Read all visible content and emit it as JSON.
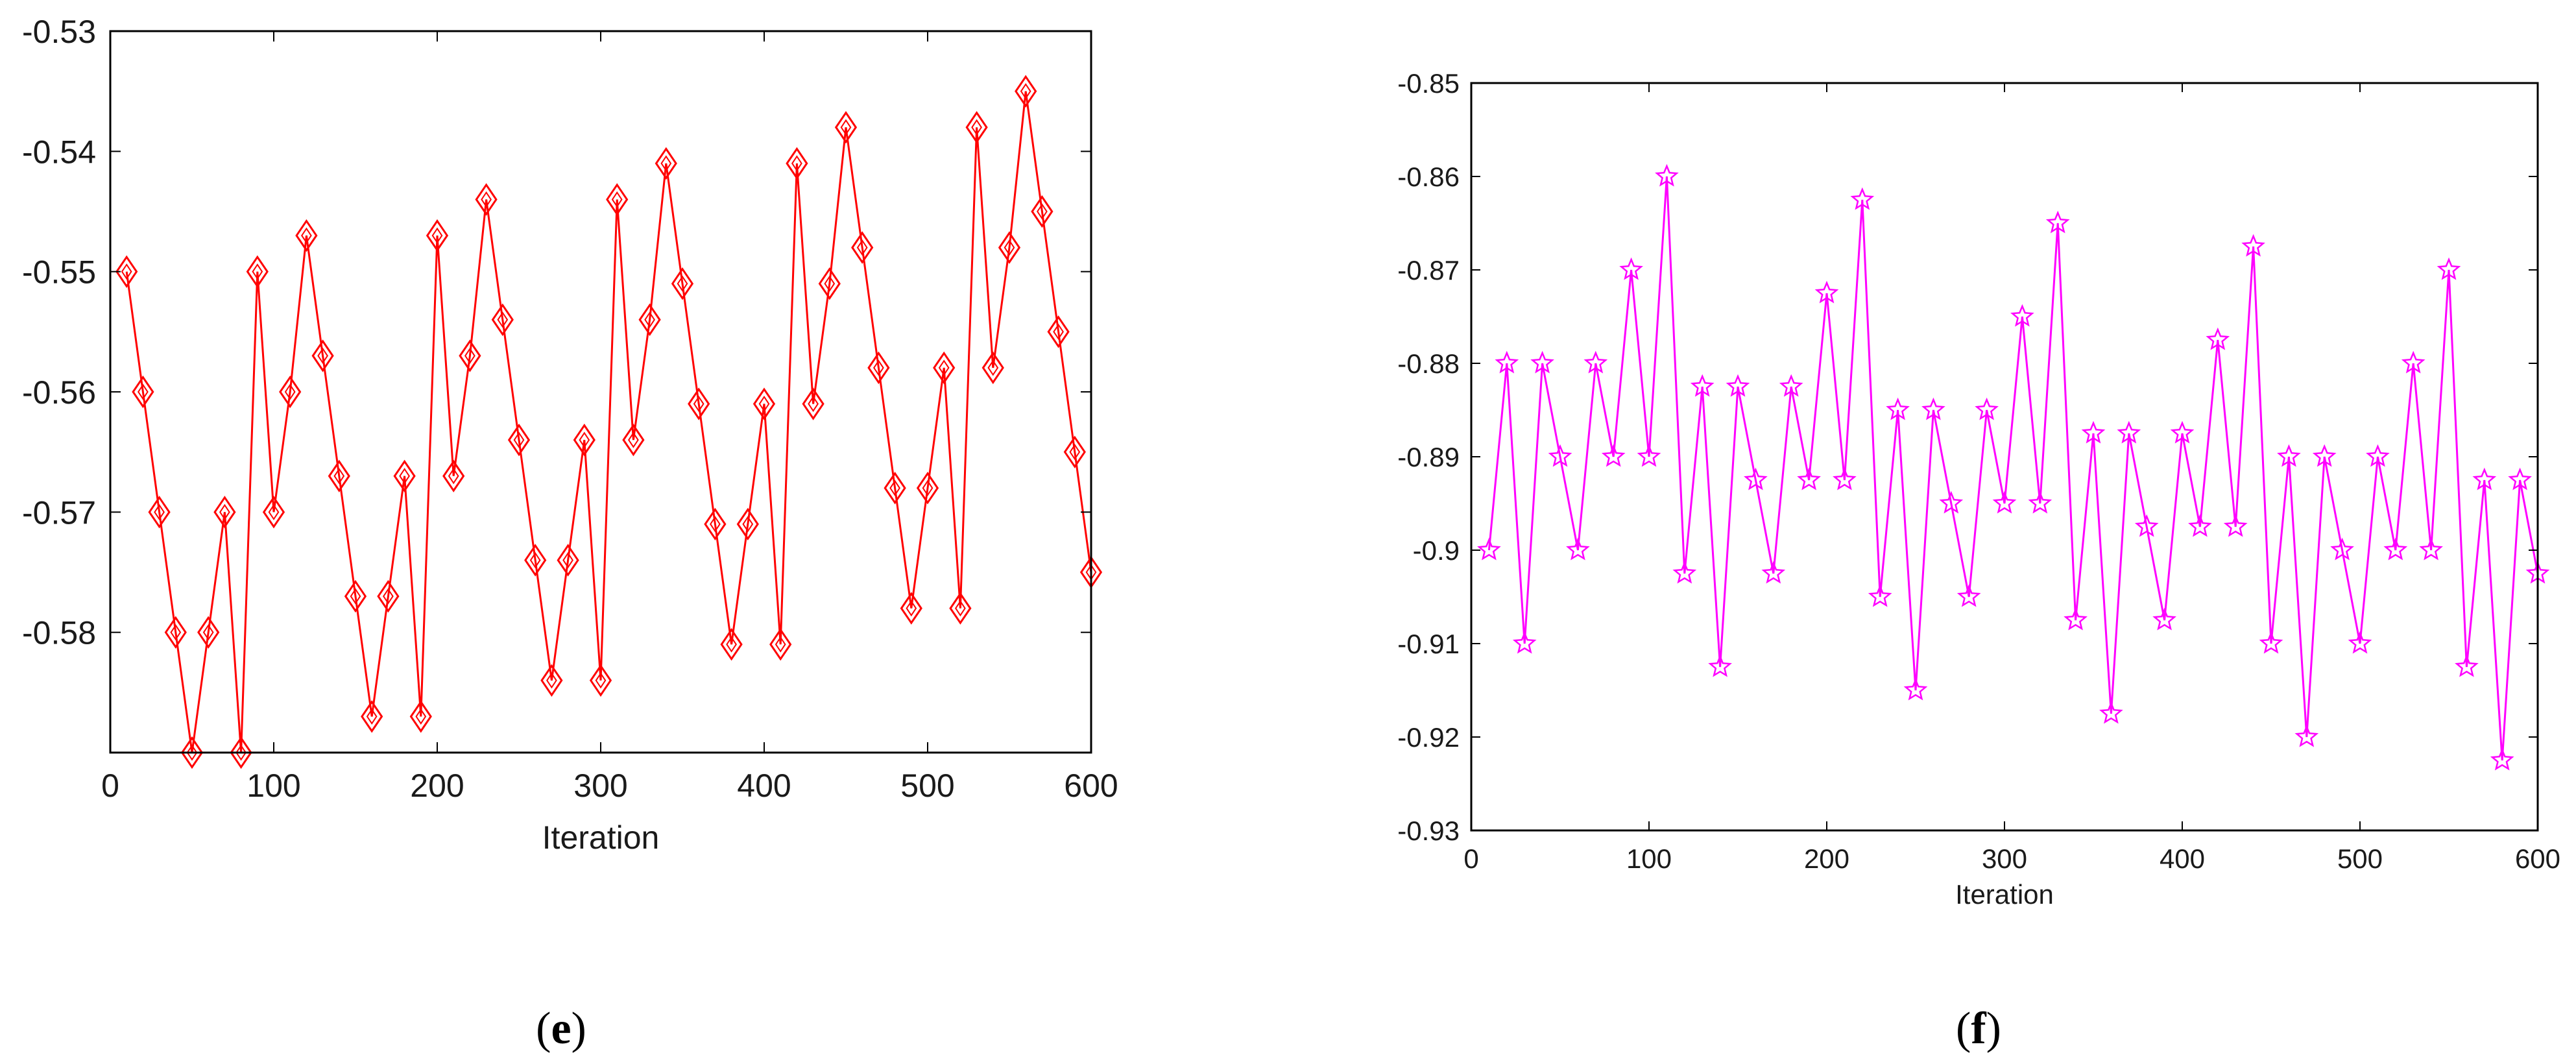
{
  "captions": {
    "left": "(",
    "left_letter": "e",
    "left_close": ")",
    "right": "(",
    "right_letter": "f",
    "right_close": ")"
  },
  "chart_data": [
    {
      "type": "line",
      "xlabel": "Iteration",
      "ylabel": "",
      "xlim": [
        0,
        600
      ],
      "ylim": [
        -0.59,
        -0.53
      ],
      "xticks": [
        0,
        100,
        200,
        300,
        400,
        500,
        600
      ],
      "yticks": [
        -0.53,
        -0.54,
        -0.55,
        -0.56,
        -0.57,
        -0.58
      ],
      "grid": false,
      "marker": "diamond",
      "color": "#ff0000",
      "series": [
        {
          "x": [
            10,
            20,
            30,
            40,
            50,
            60,
            70,
            80,
            90,
            100,
            110,
            120,
            130,
            140,
            150,
            160,
            170,
            180,
            190,
            200,
            210,
            220,
            230,
            240,
            250,
            260,
            270,
            280,
            290,
            300,
            310,
            320,
            330,
            340,
            350,
            360,
            370,
            380,
            390,
            400,
            410,
            420,
            430,
            440,
            450,
            460,
            470,
            480,
            490,
            500,
            510,
            520,
            530,
            540,
            550,
            560,
            570,
            580,
            590,
            600
          ],
          "values": [
            -0.55,
            -0.56,
            -0.57,
            -0.58,
            -0.59,
            -0.58,
            -0.57,
            -0.59,
            -0.55,
            -0.57,
            -0.56,
            -0.547,
            -0.557,
            -0.567,
            -0.577,
            -0.587,
            -0.577,
            -0.567,
            -0.587,
            -0.547,
            -0.567,
            -0.557,
            -0.544,
            -0.554,
            -0.564,
            -0.574,
            -0.584,
            -0.574,
            -0.564,
            -0.584,
            -0.544,
            -0.564,
            -0.554,
            -0.541,
            -0.551,
            -0.561,
            -0.571,
            -0.581,
            -0.571,
            -0.561,
            -0.581,
            -0.541,
            -0.561,
            -0.551,
            -0.538,
            -0.548,
            -0.558,
            -0.568,
            -0.578,
            -0.568,
            -0.558,
            -0.578,
            -0.538,
            -0.558,
            -0.548,
            -0.535,
            -0.545,
            -0.555,
            -0.565,
            -0.575
          ]
        }
      ]
    },
    {
      "type": "line",
      "xlabel": "Iteration",
      "ylabel": "",
      "xlim": [
        0,
        600
      ],
      "ylim": [
        -0.93,
        -0.85
      ],
      "xticks": [
        0,
        100,
        200,
        300,
        400,
        500,
        600
      ],
      "yticks": [
        -0.85,
        -0.86,
        -0.87,
        -0.88,
        -0.89,
        -0.9,
        -0.91,
        -0.92,
        -0.93
      ],
      "grid": false,
      "marker": "star",
      "color": "#ff00ff",
      "series": [
        {
          "x": [
            10,
            20,
            30,
            40,
            50,
            60,
            70,
            80,
            90,
            100,
            110,
            120,
            130,
            140,
            150,
            160,
            170,
            180,
            190,
            200,
            210,
            220,
            230,
            240,
            250,
            260,
            270,
            280,
            290,
            300,
            310,
            320,
            330,
            340,
            350,
            360,
            370,
            380,
            390,
            400,
            410,
            420,
            430,
            440,
            450,
            460,
            470,
            480,
            490,
            500,
            510,
            520,
            530,
            540,
            550,
            560,
            570,
            580,
            590,
            600
          ],
          "values": [
            -0.9,
            -0.88,
            -0.91,
            -0.88,
            -0.89,
            -0.9,
            -0.88,
            -0.89,
            -0.87,
            -0.89,
            -0.86,
            -0.9025,
            -0.8825,
            -0.9125,
            -0.8825,
            -0.8925,
            -0.9025,
            -0.8825,
            -0.8925,
            -0.8725,
            -0.8925,
            -0.8625,
            -0.905,
            -0.885,
            -0.915,
            -0.885,
            -0.895,
            -0.905,
            -0.885,
            -0.895,
            -0.875,
            -0.895,
            -0.865,
            -0.9075,
            -0.8875,
            -0.9175,
            -0.8875,
            -0.8975,
            -0.9075,
            -0.8875,
            -0.8975,
            -0.8775,
            -0.8975,
            -0.8675,
            -0.91,
            -0.89,
            -0.92,
            -0.89,
            -0.9,
            -0.91,
            -0.89,
            -0.9,
            -0.88,
            -0.9,
            -0.87,
            -0.9125,
            -0.8925,
            -0.9225,
            -0.8925,
            -0.9025
          ]
        }
      ]
    }
  ]
}
